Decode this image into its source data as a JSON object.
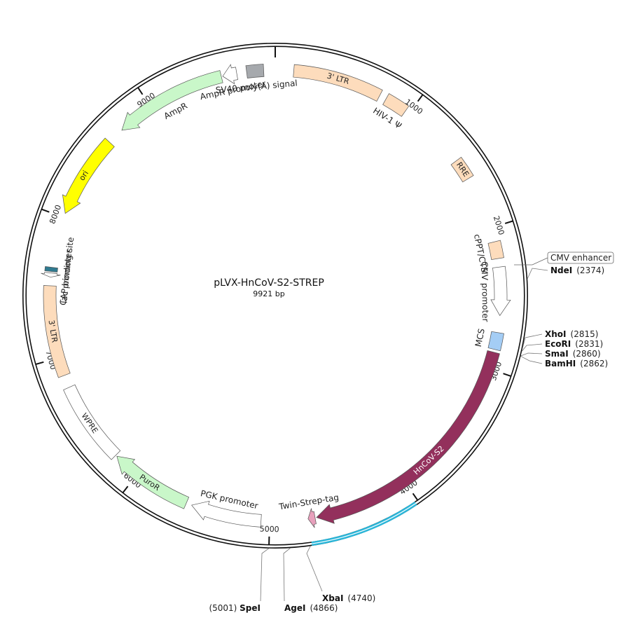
{
  "plasmid": {
    "name": "pLVX-HnCoV-S2-STREP",
    "size_label": "9921 bp",
    "length": 9921
  },
  "ticks": [
    {
      "pos": 1000,
      "label": "1000"
    },
    {
      "pos": 2000,
      "label": "2000"
    },
    {
      "pos": 3000,
      "label": "3000"
    },
    {
      "pos": 4000,
      "label": "4000"
    },
    {
      "pos": 5000,
      "label": "5000"
    },
    {
      "pos": 6000,
      "label": "6000"
    },
    {
      "pos": 7000,
      "label": "7000"
    },
    {
      "pos": 8000,
      "label": "8000"
    },
    {
      "pos": 9000,
      "label": "9000"
    }
  ],
  "features": [
    {
      "id": "ltr5",
      "label": "3' LTR",
      "start": 130,
      "end": 760,
      "type": "box",
      "fill": "#fddcbc",
      "text": "inner"
    },
    {
      "id": "hiv-psi",
      "label": "HIV-1 Ψ",
      "start": 810,
      "end": 970,
      "type": "box",
      "fill": "#fddcbc",
      "text": "outer"
    },
    {
      "id": "rre",
      "label": "RRE",
      "start": 1470,
      "end": 1620,
      "type": "box",
      "fill": "#fddcbc",
      "text": "inner"
    },
    {
      "id": "cppt",
      "label": "cPPT/CTS",
      "start": 2100,
      "end": 2220,
      "type": "box",
      "fill": "#fddcbc",
      "text": "outer"
    },
    {
      "id": "cmv-promoter",
      "label": "CMV promoter",
      "start": 2280,
      "end": 2620,
      "type": "arrow",
      "dir": 1,
      "fill": "#ffffff",
      "text": "outer"
    },
    {
      "id": "mcs",
      "label": "MCS",
      "start": 2740,
      "end": 2860,
      "type": "box",
      "fill": "#a4cdf5",
      "text": "outer"
    },
    {
      "id": "hncov-s2",
      "label": "HnCoV-S2",
      "start": 2880,
      "end": 4670,
      "type": "arrow",
      "dir": 1,
      "fill": "#93305c",
      "text": "inner-white"
    },
    {
      "id": "twin-strep",
      "label": "Twin-Strep-tag",
      "start": 4680,
      "end": 4730,
      "type": "arrow",
      "dir": 1,
      "fill": "#e8a0bc",
      "text": "outer"
    },
    {
      "id": "pgk",
      "label": "PGK promoter",
      "start": 5060,
      "end": 5560,
      "type": "arrow",
      "dir": 1,
      "fill": "#ffffff",
      "text": "outer"
    },
    {
      "id": "puror",
      "label": "PuroR",
      "start": 5600,
      "end": 6190,
      "type": "arrow",
      "dir": 1,
      "fill": "#c9f7c9",
      "text": "inner"
    },
    {
      "id": "wpre",
      "label": "WPRE",
      "start": 6200,
      "end": 6780,
      "type": "box",
      "fill": "#ffffff",
      "text": "inner"
    },
    {
      "id": "ltr3",
      "label": "3' LTR",
      "start": 6870,
      "end": 7510,
      "type": "box",
      "fill": "#fddcbc",
      "text": "inner"
    },
    {
      "id": "lac",
      "label": "lac promoter",
      "start": 7570,
      "end": 7600,
      "type": "arrow",
      "dir": -1,
      "fill": "#ffffff",
      "text": "outer"
    },
    {
      "id": "cap",
      "label": "CAP binding site",
      "start": 7610,
      "end": 7640,
      "type": "box",
      "fill": "#2f7a90",
      "text": "outer"
    },
    {
      "id": "ori",
      "label": "ori",
      "start": 8030,
      "end": 8620,
      "type": "arrow",
      "dir": -1,
      "fill": "#ffff00",
      "text": "inner"
    },
    {
      "id": "ampr",
      "label": "AmpR",
      "start": 8740,
      "end": 9540,
      "type": "arrow",
      "dir": -1,
      "fill": "#c9f7c9",
      "text": "outer"
    },
    {
      "id": "ampr-promoter",
      "label": "AmpR promoter",
      "start": 9550,
      "end": 9650,
      "type": "arrow",
      "dir": -1,
      "fill": "#ffffff",
      "text": "outer"
    },
    {
      "id": "sv40",
      "label": "SV40 poly(A) signal",
      "start": 9720,
      "end": 9840,
      "type": "box",
      "fill": "#a6a9ad",
      "text": "outer"
    }
  ],
  "sites": [
    {
      "name": "NdeI",
      "pos": 2374,
      "pos_label": "(2374)"
    },
    {
      "name": "XhoI",
      "pos": 2815,
      "pos_label": "(2815)"
    },
    {
      "name": "EcoRI",
      "pos": 2831,
      "pos_label": "(2831)"
    },
    {
      "name": "SmaI",
      "pos": 2860,
      "pos_label": "(2860)"
    },
    {
      "name": "BamHI",
      "pos": 2862,
      "pos_label": "(2862)"
    },
    {
      "name": "XbaI",
      "pos": 4740,
      "pos_label": "(4740)"
    },
    {
      "name": "AgeI",
      "pos": 4866,
      "pos_label": "(4866)"
    },
    {
      "name": "SpeI",
      "pos": 5001,
      "pos_label": "(5001)"
    }
  ],
  "callout": {
    "label": "CMV enhancer"
  },
  "highlight": {
    "start": 4020,
    "end": 4730,
    "color": "#2ab6d9"
  }
}
